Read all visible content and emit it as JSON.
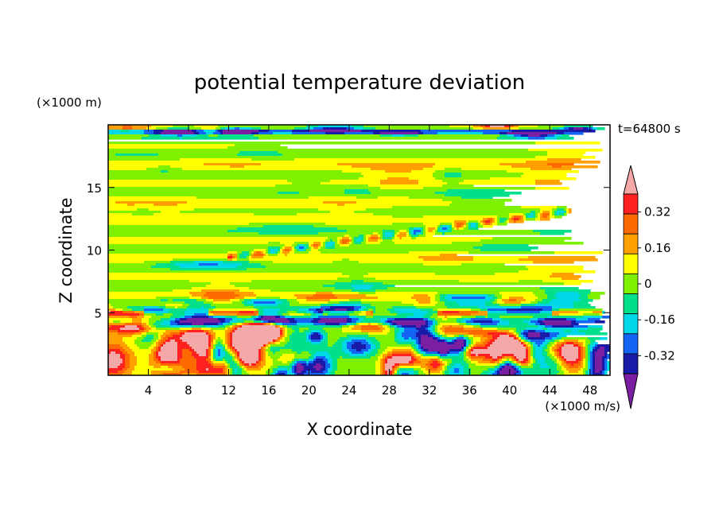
{
  "chart_data": {
    "type": "heatmap",
    "title": "potential temperature deviation",
    "xlabel": "X coordinate",
    "ylabel": "Z coordinate",
    "x_unit": "(×1000 m/s)",
    "y_unit": "(×1000 m)",
    "time_label": "t=64800 s",
    "xlim": [
      0,
      50
    ],
    "ylim": [
      0,
      20
    ],
    "x_ticks": [
      4,
      8,
      12,
      16,
      20,
      24,
      28,
      32,
      36,
      40,
      44,
      48
    ],
    "y_ticks": [
      5,
      10,
      15
    ],
    "grid": false,
    "colorbar": {
      "placement": "right",
      "levels": [
        -0.4,
        -0.32,
        -0.24,
        -0.16,
        -0.08,
        0,
        0.08,
        0.16,
        0.24,
        0.32,
        0.4
      ],
      "tick_labels": [
        "0.32",
        "0.16",
        "0",
        "-0.16",
        "-0.32"
      ],
      "tick_values": [
        0.32,
        0.16,
        0,
        -0.16,
        -0.32
      ],
      "colors": [
        "#7b1fa2",
        "#1a1aa8",
        "#1565f5",
        "#00d8e8",
        "#00e08a",
        "#7ff000",
        "#ffff00",
        "#ffa000",
        "#ff6a00",
        "#ff2020",
        "#f5a8a8"
      ]
    }
  }
}
